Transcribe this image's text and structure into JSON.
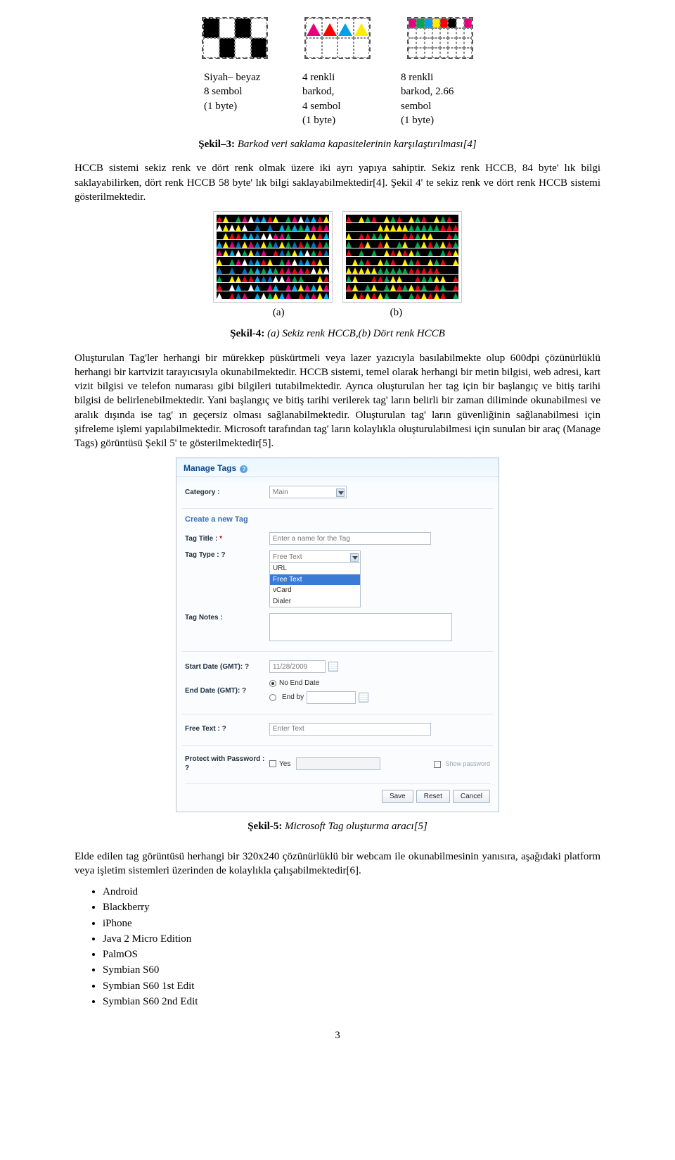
{
  "figure3": {
    "items": [
      {
        "caption_l1": "Siyah– beyaz",
        "caption_l2": "8 sembol",
        "caption_l3": "(1 byte)"
      },
      {
        "caption_l1": "4 renkli",
        "caption_l2": "barkod,",
        "caption_l3": "4 sembol",
        "caption_l4": "(1 byte)"
      },
      {
        "caption_l1": "8 renkli",
        "caption_l2": "barkod, 2.66",
        "caption_l3": "sembol",
        "caption_l4": "(1 byte)"
      }
    ],
    "barcodeA_cells": [
      "#000000",
      "#ffffff",
      "#000000",
      "#ffffff",
      "#ffffff",
      "#000000",
      "#ffffff",
      "#000000"
    ],
    "barcodeB_tris": [
      "#e6007e",
      "#ff0000",
      "#00a0e9",
      "#ffec00",
      "#000000",
      "#00a0e9",
      "#e6007e",
      "#ffec00"
    ],
    "barcodeC_dots": [
      "#e6007e",
      "#00a651",
      "#00a0e9",
      "#ffec00",
      "#ff0000",
      "#000000",
      "#ffffff",
      "#e6007e"
    ],
    "label_prefix": "Şekil–3:",
    "label_text": " Barkod veri saklama kapasitelerinin karşılaştırılması[4]"
  },
  "para1": "HCCB sistemi sekiz renk ve dört renk olmak üzere iki ayrı yapıya sahiptir. Sekiz renk HCCB, 84 byte' lık bilgi saklayabilirken, dört renk HCCB 58 byte' lık bilgi saklayabilmektedir[4]. Şekil 4' te sekiz renk ve dört renk HCCB sistemi gösterilmektedir.",
  "hccb": {
    "palette8": [
      "#e30613",
      "#00a651",
      "#0072bc",
      "#ffec00",
      "#e6007e",
      "#00aeef",
      "#000000",
      "#ffffff"
    ],
    "palette4": [
      "#e30613",
      "#00a651",
      "#ffec00",
      "#000000"
    ],
    "a_label": "(a)",
    "b_label": "(b)"
  },
  "figure4": {
    "label_prefix": "Şekil-4:",
    "label_text": " (a) Sekiz renk HCCB,(b) Dört renk HCCB"
  },
  "para2": "Oluşturulan Tag'ler herhangi bir mürekkep püskürtmeli veya lazer yazıcıyla basılabilmekte olup 600dpi çözünürlüklü herhangi bir kartvizit tarayıcısıyla okunabilmektedir. HCCB sistemi, temel olarak herhangi bir metin bilgisi, web adresi, kart vizit bilgisi ve telefon numarası gibi bilgileri tutabilmektedir. Ayrıca oluşturulan her tag için bir başlangıç ve bitiş tarihi bilgisi de belirlenebilmektedir. Yani başlangıç ve bitiş tarihi verilerek tag' ların belirli bir zaman diliminde okunabilmesi ve aralık dışında ise tag' ın geçersiz olması sağlanabilmektedir. Oluşturulan tag' ların güvenliğinin sağlanabilmesi için şifreleme işlemi yapılabilmektedir. Microsoft tarafından tag' ların kolaylıkla oluşturulabilmesi için sunulan bir araç (Manage Tags) görüntüsü Şekil 5' te gösterilmektedir[5].",
  "manageTags": {
    "title": "Manage Tags",
    "labels": {
      "category": "Category :",
      "createNew": "Create a new Tag",
      "tagTitle": "Tag Title :",
      "tagType": "Tag Type :",
      "tagNotes": "Tag Notes :",
      "startDate": "Start Date (GMT):",
      "endDate": "End Date (GMT):",
      "freeText": "Free Text :",
      "protect": "Protect with Password :",
      "noEnd": "No End Date",
      "endBy": "End by",
      "yes": "Yes",
      "showPw": "Show password"
    },
    "values": {
      "category_selected": "Main",
      "title_placeholder": "Enter a name for the Tag",
      "type_selected": "Free Text",
      "type_options": [
        "URL",
        "Free Text",
        "vCard",
        "Dialer"
      ],
      "start_date": "11/28/2009",
      "freetext_placeholder": "Enter Text"
    },
    "buttons": {
      "save": "Save",
      "reset": "Reset",
      "cancel": "Cancel"
    },
    "colors": {
      "header_text": "#0a4a8a",
      "selected_bg": "#3a7bd5",
      "border": "#b7c1cb"
    }
  },
  "figure5": {
    "label_prefix": "Şekil-5:",
    "label_text": " Microsoft Tag oluşturma aracı[5]"
  },
  "para3": "Elde edilen tag görüntüsü herhangi bir 320x240 çözünürlüklü bir webcam ile okunabilmesinin yanısıra, aşağıdaki platform veya işletim sistemleri üzerinden de kolaylıkla çalışabilmektedir[6].",
  "platforms": [
    "Android",
    "Blackberry",
    "iPhone",
    "Java 2 Micro Edition",
    "PalmOS",
    "Symbian S60",
    "Symbian S60 1st Edit",
    "Symbian S60 2nd Edit"
  ],
  "page_number": "3"
}
